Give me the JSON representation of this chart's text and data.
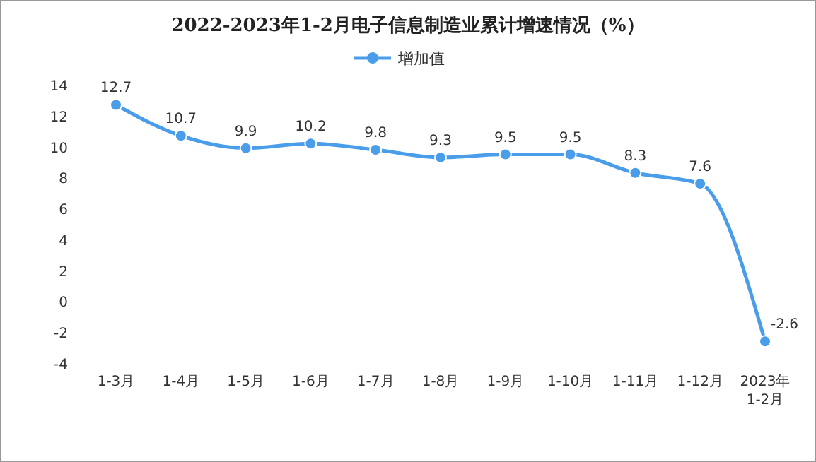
{
  "chart_data": {
    "type": "line",
    "title": "2022-2023年1-2月电子信息制造业累计增速情况（%）",
    "categories": [
      "1-3月",
      "1-4月",
      "1-5月",
      "1-6月",
      "1-7月",
      "1-8月",
      "1-9月",
      "1-10月",
      "1-11月",
      "1-12月",
      "2023年\n1-2月"
    ],
    "series": [
      {
        "name": "增加值",
        "color": "#4a9de8",
        "values": [
          12.7,
          10.7,
          9.9,
          10.2,
          9.8,
          9.3,
          9.5,
          9.5,
          8.3,
          7.6,
          -2.6
        ]
      }
    ],
    "ylim": [
      -4,
      14
    ],
    "yticks": [
      -4,
      -2,
      0,
      2,
      4,
      6,
      8,
      10,
      12,
      14
    ],
    "grid": false,
    "legend": "top",
    "marker": "circle",
    "line_style": "solid",
    "data_labels": true
  }
}
